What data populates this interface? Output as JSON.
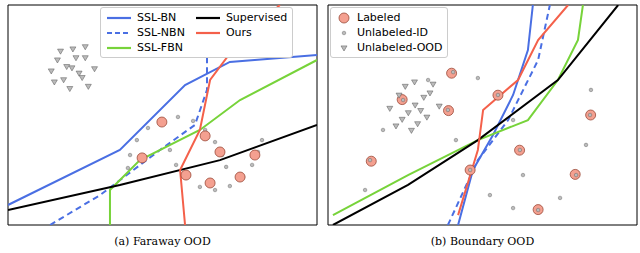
{
  "chart_data": [
    {
      "type": "scatter",
      "title": "(a) Faraway OOD",
      "xlim": [
        0,
        10
      ],
      "ylim": [
        0,
        10
      ],
      "tick_labels": false,
      "legend": "upper right",
      "series": [
        {
          "name": "SSL-BN",
          "type": "line",
          "color": "#4a6fe3",
          "line_style": "solid",
          "x": [
            0,
            3.62,
            5.73,
            7.18,
            10
          ],
          "values": [
            0.91,
            3.41,
            6.36,
            7.41,
            7.73
          ]
        },
        {
          "name": "SSL-NBN",
          "type": "line",
          "color": "#4a6fe3",
          "line_style": "dashed",
          "x": [
            1.36,
            2.98,
            4.92,
            6.05,
            6.44,
            6.44
          ],
          "values": [
            0,
            1.36,
            3.41,
            4.55,
            6.14,
            10
          ]
        },
        {
          "name": "SSL-FBN",
          "type": "line",
          "color": "#77d33a",
          "line_style": "solid",
          "x": [
            3.3,
            3.3,
            4.27,
            6.21,
            7.51,
            10
          ],
          "values": [
            0,
            1.59,
            2.95,
            4.32,
            5.68,
            7.5
          ]
        },
        {
          "name": "Supervised",
          "type": "line",
          "color": "#000000",
          "line_style": "solid",
          "x": [
            0,
            3.62,
            6.86,
            10
          ],
          "values": [
            0.68,
            1.82,
            2.95,
            4.55
          ]
        },
        {
          "name": "Ours",
          "type": "line",
          "color": "#f4604a",
          "line_style": "solid",
          "x": [
            5.73,
            5.57,
            6.21,
            6.54,
            7.51,
            8.8
          ],
          "values": [
            0,
            2.5,
            4.32,
            6.59,
            8.41,
            10
          ]
        },
        {
          "type": "scatter",
          "color": "#bbbbbb",
          "marker": ".",
          "x": [
            3.88,
            3.95,
            4.17,
            4.53,
            4.98,
            5.5,
            5.99,
            6.38,
            6.7,
            6.93,
            7.06,
            5.24,
            5.44,
            5.76,
            6.21,
            6.7,
            7.18,
            7.61,
            7.9,
            8.09,
            8.22
          ],
          "values": [
            2.59,
            3.18,
            3.86,
            4.41,
            4.77,
            4.91,
            4.73,
            4.32,
            3.77,
            3.18,
            2.64,
            3.41,
            2.73,
            2.14,
            1.73,
            1.59,
            1.77,
            2.18,
            2.73,
            3.32,
            3.86
          ]
        },
        {
          "type": "scatter",
          "color": "#bbbbbb",
          "marker": "v",
          "x": [
            2.07,
            1.6,
            2.5,
            1.8,
            2.4,
            2.1,
            2.0,
            1.4,
            2.8,
            1.7,
            2.5,
            2.6,
            1.5,
            2.2,
            1.9,
            2.3
          ],
          "values": [
            7.14,
            7.5,
            7.6,
            6.6,
            6.7,
            8.0,
            6.2,
            7.0,
            7.1,
            7.9,
            8.1,
            6.3,
            6.5,
            7.6,
            7.2,
            6.9
          ]
        },
        {
          "type": "scatter",
          "color": "#f4a090",
          "marker": "o",
          "x": [
            4.34,
            4.98,
            6.38,
            5.76,
            6.54,
            7.51,
            7.99,
            6.86
          ],
          "values": [
            3.05,
            4.68,
            4.05,
            2.27,
            1.91,
            2.18,
            3.18,
            3.32
          ]
        }
      ]
    },
    {
      "type": "scatter",
      "title": "(b) Boundary OOD",
      "xlim": [
        0,
        10
      ],
      "ylim": [
        0,
        10
      ],
      "tick_labels": false,
      "legend": "upper left",
      "series": [
        {
          "type": "line",
          "color": "#4a6fe3",
          "line_style": "solid",
          "x": [
            4.21,
            4.69,
            5.34,
            5.99,
            6.47,
            6.63
          ],
          "values": [
            0,
            2.5,
            4.09,
            5.91,
            7.95,
            10
          ]
        },
        {
          "type": "line",
          "color": "#4a6fe3",
          "line_style": "dashed",
          "x": [
            3.88,
            4.85,
            5.83,
            6.8,
            7.18
          ],
          "values": [
            0,
            2.95,
            4.77,
            7.5,
            10
          ]
        },
        {
          "type": "line",
          "color": "#77d33a",
          "line_style": "solid",
          "x": [
            0.16,
            2.59,
            4.85,
            6.47,
            7.44,
            8.09,
            8.25
          ],
          "values": [
            0.45,
            2.27,
            3.86,
            4.77,
            6.59,
            8.41,
            10
          ]
        },
        {
          "type": "line",
          "color": "#000000",
          "line_style": "solid",
          "x": [
            0.16,
            2.59,
            4.85,
            7.44,
            9.39
          ],
          "values": [
            0,
            1.82,
            3.86,
            6.59,
            10
          ]
        },
        {
          "type": "line",
          "color": "#f4604a",
          "line_style": "solid",
          "x": [
            4.21,
            4.85,
            5.02,
            6.15,
            6.8,
            7.77
          ],
          "values": [
            0.45,
            3.41,
            5.23,
            6.59,
            8.41,
            10
          ]
        },
        {
          "name": "Labeled",
          "type": "scatter",
          "color": "#f4a090",
          "marker": "o",
          "x": [
            1.4,
            2.4,
            4.0,
            5.5,
            6.2,
            4.6,
            6.8,
            8.0,
            8.5,
            3.9
          ],
          "values": [
            2.9,
            5.7,
            6.9,
            5.9,
            3.4,
            2.5,
            0.7,
            2.3,
            5.0,
            5.2
          ]
        },
        {
          "name": "Unlabeled-ID",
          "type": "scatter",
          "color": "#bbbbbb",
          "marker": ".",
          "x": [
            1.2,
            1.36,
            1.78,
            2.43,
            3.24,
            4.05,
            4.85,
            5.5,
            5.99,
            6.21,
            6.31,
            3.88,
            4.14,
            4.6,
            5.24,
            5.99,
            6.8,
            7.51,
            8.03,
            8.35,
            8.48,
            8.51
          ],
          "values": [
            1.59,
            2.95,
            4.32,
            5.68,
            6.59,
            6.95,
            6.68,
            5.91,
            4.77,
            3.41,
            2.27,
            5.23,
            3.86,
            2.5,
            1.36,
            0.77,
            0.68,
            1.23,
            2.27,
            3.64,
            5.0,
            6.14
          ]
        },
        {
          "name": "Unlabeled-OOD",
          "type": "scatter",
          "color": "#bbbbbb",
          "marker": "v",
          "x": [
            2.82,
            2.3,
            3.3,
            2.4,
            3.2,
            2.8,
            2.7,
            2.0,
            3.6,
            2.5,
            3.1,
            2.9,
            2.2,
            3.4,
            2.6,
            3.0
          ],
          "values": [
            5.45,
            5.9,
            6.0,
            4.8,
            4.9,
            6.5,
            4.3,
            5.3,
            5.4,
            6.3,
            5.8,
            4.6,
            4.5,
            6.4,
            5.1,
            5.2
          ]
        }
      ]
    }
  ]
}
